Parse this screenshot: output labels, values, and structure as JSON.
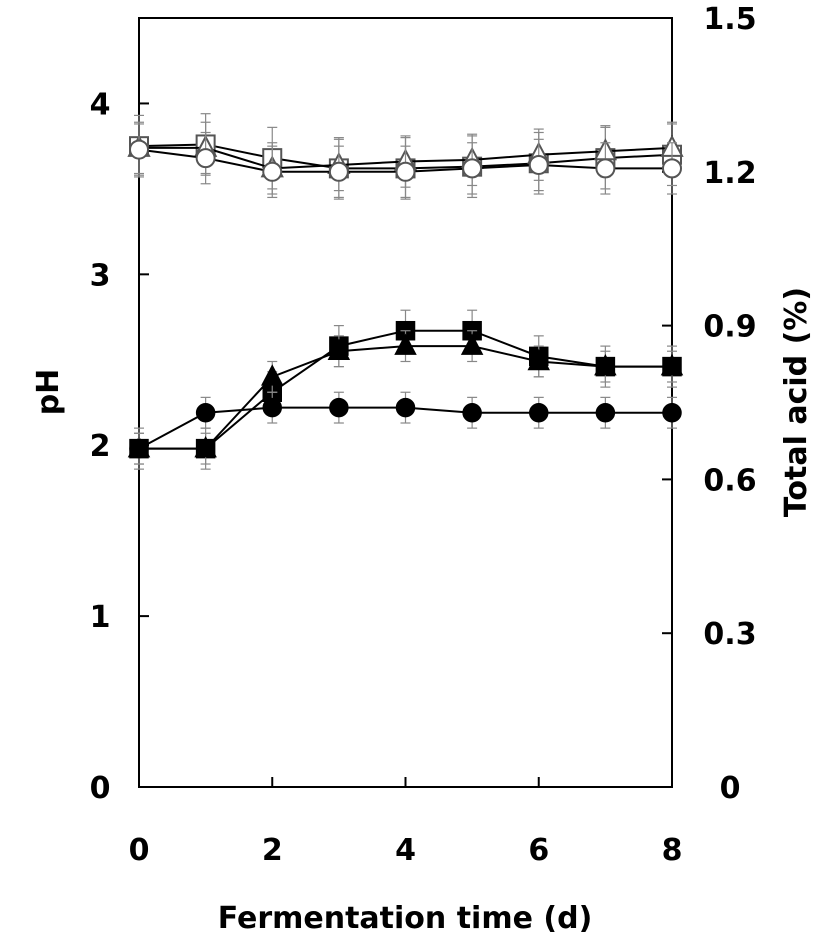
{
  "chart_data": {
    "type": "line",
    "xlabel": "Fermentation time (d)",
    "ylabel_left": "pH",
    "ylabel_right": "Total acid (%)",
    "x_ticks": [
      "0",
      "2",
      "4",
      "6",
      "8"
    ],
    "y_left_ticks": [
      "0",
      "1",
      "2",
      "3",
      "4"
    ],
    "y_right_ticks": [
      "0",
      "0.3",
      "0.6",
      "0.9",
      "1.2",
      "1.5"
    ],
    "xlim": [
      0,
      8
    ],
    "ylim_left": [
      0,
      4.5
    ],
    "ylim_right": [
      0,
      1.5
    ],
    "x": [
      0,
      1,
      2,
      3,
      4,
      5,
      6,
      7,
      8
    ],
    "series": [
      {
        "marker": "open-square",
        "axis": "left",
        "values": [
          3.75,
          3.76,
          3.68,
          3.62,
          3.62,
          3.63,
          3.65,
          3.68,
          3.7
        ],
        "error": 0.18
      },
      {
        "marker": "open-triangle",
        "axis": "left",
        "values": [
          3.74,
          3.74,
          3.62,
          3.64,
          3.66,
          3.67,
          3.7,
          3.72,
          3.74
        ],
        "error": 0.15
      },
      {
        "marker": "open-circle",
        "axis": "left",
        "values": [
          3.73,
          3.68,
          3.6,
          3.6,
          3.6,
          3.62,
          3.64,
          3.62,
          3.62
        ],
        "error": 0.15
      },
      {
        "marker": "filled-square",
        "axis": "right",
        "values": [
          0.66,
          0.66,
          0.77,
          0.86,
          0.89,
          0.89,
          0.84,
          0.82,
          0.82
        ],
        "error": 0.04
      },
      {
        "marker": "filled-triangle",
        "axis": "right",
        "values": [
          0.66,
          0.66,
          0.8,
          0.85,
          0.86,
          0.86,
          0.83,
          0.82,
          0.82
        ],
        "error": 0.03
      },
      {
        "marker": "filled-circle",
        "axis": "right",
        "values": [
          0.66,
          0.73,
          0.74,
          0.74,
          0.74,
          0.73,
          0.73,
          0.73,
          0.73
        ],
        "error": 0.03
      }
    ]
  }
}
